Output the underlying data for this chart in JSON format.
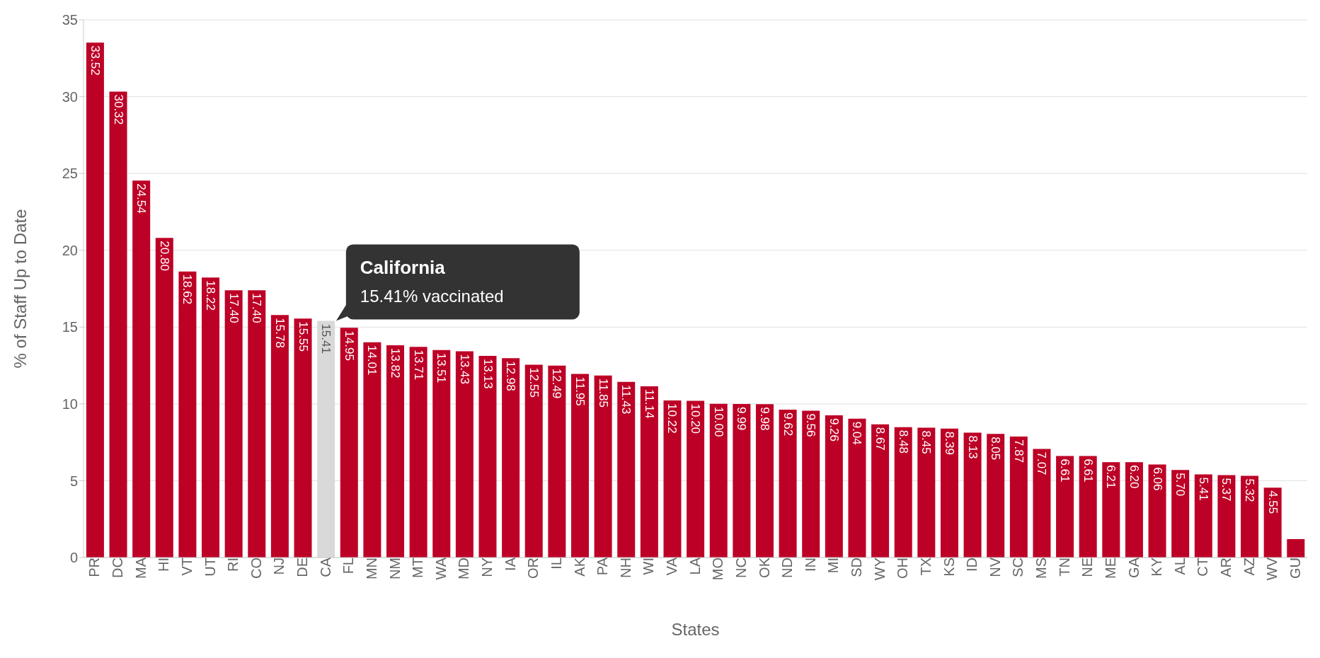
{
  "chart_data": {
    "type": "bar",
    "xlabel": "States",
    "ylabel": "% of Staff Up to Date",
    "categories": [
      "PR",
      "DC",
      "MA",
      "HI",
      "VT",
      "UT",
      "RI",
      "CO",
      "NJ",
      "DE",
      "CA",
      "FL",
      "MN",
      "NM",
      "MT",
      "WA",
      "MD",
      "NY",
      "IA",
      "OR",
      "IL",
      "AK",
      "PA",
      "NH",
      "WI",
      "VA",
      "LA",
      "MO",
      "NC",
      "OK",
      "ND",
      "IN",
      "MI",
      "SD",
      "WY",
      "OH",
      "TX",
      "KS",
      "ID",
      "NV",
      "SC",
      "MS",
      "TN",
      "NE",
      "ME",
      "GA",
      "KY",
      "AL",
      "CT",
      "AR",
      "AZ",
      "WV",
      "GU"
    ],
    "values": [
      33.52,
      30.32,
      24.54,
      20.8,
      18.62,
      18.22,
      17.4,
      17.4,
      15.78,
      15.55,
      15.41,
      14.95,
      14.01,
      13.82,
      13.71,
      13.51,
      13.43,
      13.13,
      12.98,
      12.55,
      12.49,
      11.95,
      11.85,
      11.43,
      11.14,
      10.22,
      10.2,
      10.0,
      9.99,
      9.98,
      9.62,
      9.56,
      9.26,
      9.04,
      8.67,
      8.48,
      8.45,
      8.39,
      8.13,
      8.05,
      7.87,
      7.07,
      6.61,
      6.61,
      6.21,
      6.2,
      6.06,
      5.7,
      5.41,
      5.37,
      5.32,
      4.55,
      1.2
    ],
    "value_labels": [
      "33.52",
      "30.32",
      "24.54",
      "20.80",
      "18.62",
      "18.22",
      "17.40",
      "17.40",
      "15.78",
      "15.55",
      "15.41",
      "14.95",
      "14.01",
      "13.82",
      "13.71",
      "13.51",
      "13.43",
      "13.13",
      "12.98",
      "12.55",
      "12.49",
      "11.95",
      "11.85",
      "11.43",
      "11.14",
      "10.22",
      "10.20",
      "10.00",
      "9.99",
      "9.98",
      "9.62",
      "9.56",
      "9.26",
      "9.04",
      "8.67",
      "8.48",
      "8.45",
      "8.39",
      "8.13",
      "8.05",
      "7.87",
      "7.07",
      "6.61",
      "6.61",
      "6.21",
      "6.20",
      "6.06",
      "5.70",
      "5.41",
      "5.37",
      "5.32",
      "4.55",
      null
    ],
    "colors": [
      "#bd0026",
      "#bd0026",
      "#bd0026",
      "#bd0026",
      "#bd0026",
      "#bd0026",
      "#bd0026",
      "#bd0026",
      "#bd0026",
      "#bd0026",
      "#d9d9d9",
      "#bd0026",
      "#bd0026",
      "#bd0026",
      "#bd0026",
      "#bd0026",
      "#bd0026",
      "#bd0026",
      "#bd0026",
      "#bd0026",
      "#bd0026",
      "#bd0026",
      "#bd0026",
      "#bd0026",
      "#bd0026",
      "#bd0026",
      "#bd0026",
      "#bd0026",
      "#bd0026",
      "#bd0026",
      "#bd0026",
      "#bd0026",
      "#bd0026",
      "#bd0026",
      "#bd0026",
      "#bd0026",
      "#bd0026",
      "#bd0026",
      "#bd0026",
      "#bd0026",
      "#bd0026",
      "#bd0026",
      "#bd0026",
      "#bd0026",
      "#bd0026",
      "#bd0026",
      "#bd0026",
      "#bd0026",
      "#bd0026",
      "#bd0026",
      "#bd0026",
      "#bd0026",
      "#bd0026"
    ],
    "ylim": [
      0,
      35
    ],
    "yticks": [
      0,
      5,
      10,
      15,
      20,
      25,
      30,
      35
    ],
    "grid": "y",
    "annotations": [
      {
        "text": "California",
        "x": "CA",
        "y": 15.41
      },
      {
        "text": "15.41% vaccinated",
        "x": "CA",
        "y": 15.41
      }
    ]
  }
}
